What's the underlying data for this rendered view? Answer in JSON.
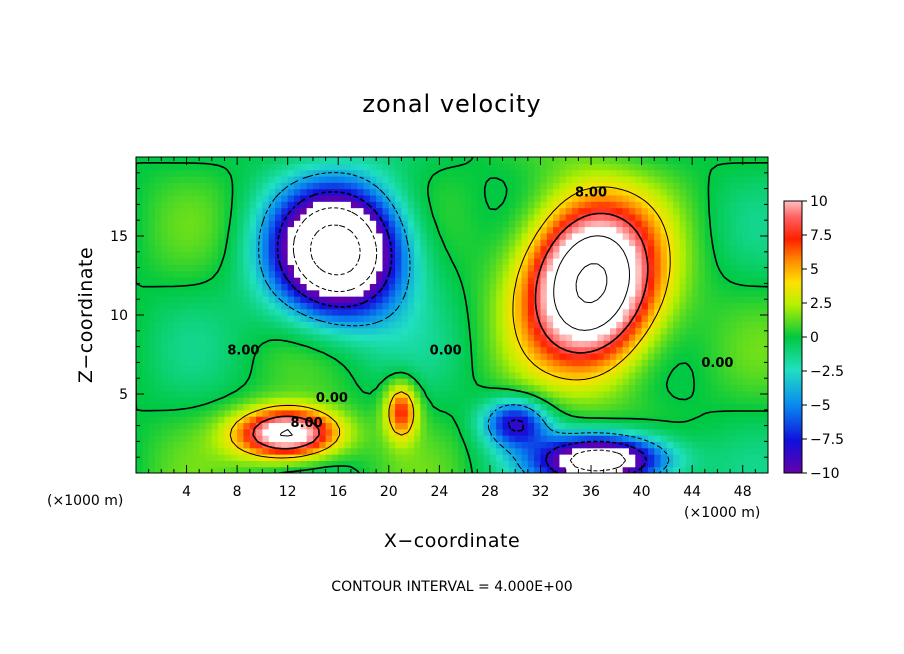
{
  "chart_data": {
    "type": "heatmap",
    "title": "zonal velocity",
    "xlabel": "X−coordinate",
    "ylabel": "Z−coordinate",
    "x_unit": "(×1000 m)",
    "xlim": [
      0,
      50
    ],
    "ylim": [
      0,
      20
    ],
    "x_ticks": [
      4,
      8,
      12,
      16,
      20,
      24,
      28,
      32,
      36,
      40,
      44,
      48
    ],
    "y_ticks": [
      5,
      10,
      15
    ],
    "colorbar": {
      "range": [
        -10,
        10
      ],
      "ticks": [
        10,
        7.5,
        5,
        2.5,
        0,
        -2.5,
        -5,
        -7.5,
        -10
      ],
      "tick_labels": [
        "10",
        "7.5",
        "5",
        "2.5",
        "0",
        "−2.5",
        "−5",
        "−7.5",
        "−10"
      ]
    },
    "contour_labels": [
      {
        "text": "8.00",
        "x": 36,
        "y": 17.5
      },
      {
        "text": "8.00",
        "x": 8.5,
        "y": 7.5
      },
      {
        "text": "8.00",
        "x": 13.5,
        "y": 2.9
      },
      {
        "text": "0.00",
        "x": 15.5,
        "y": 4.5
      },
      {
        "text": "0.00",
        "x": 24.5,
        "y": 7.5
      },
      {
        "text": "0.00",
        "x": 46,
        "y": 6.7
      }
    ],
    "features": [
      {
        "name": "easterly-jet",
        "x": 16,
        "y": 14,
        "sx": 5,
        "sy": 4,
        "value": -18
      },
      {
        "name": "westerly-jet",
        "x": 36,
        "y": 12,
        "sx": 5,
        "sy": 5,
        "value": 17
      },
      {
        "name": "low-westerly",
        "x": 12,
        "y": 2.5,
        "sx": 4,
        "sy": 1.6,
        "value": 13
      },
      {
        "name": "low-easterly",
        "x": 37,
        "y": 0.8,
        "sx": 5,
        "sy": 1.6,
        "value": -15
      },
      {
        "name": "mid-easterly",
        "x": 30,
        "y": 3.2,
        "sx": 2.5,
        "sy": 1.5,
        "value": -8
      },
      {
        "name": "plume",
        "x": 21,
        "y": 4,
        "sx": 1.3,
        "sy": 1.8,
        "value": 7
      }
    ],
    "footer": "CONTOUR INTERVAL = 4.000E+00"
  }
}
